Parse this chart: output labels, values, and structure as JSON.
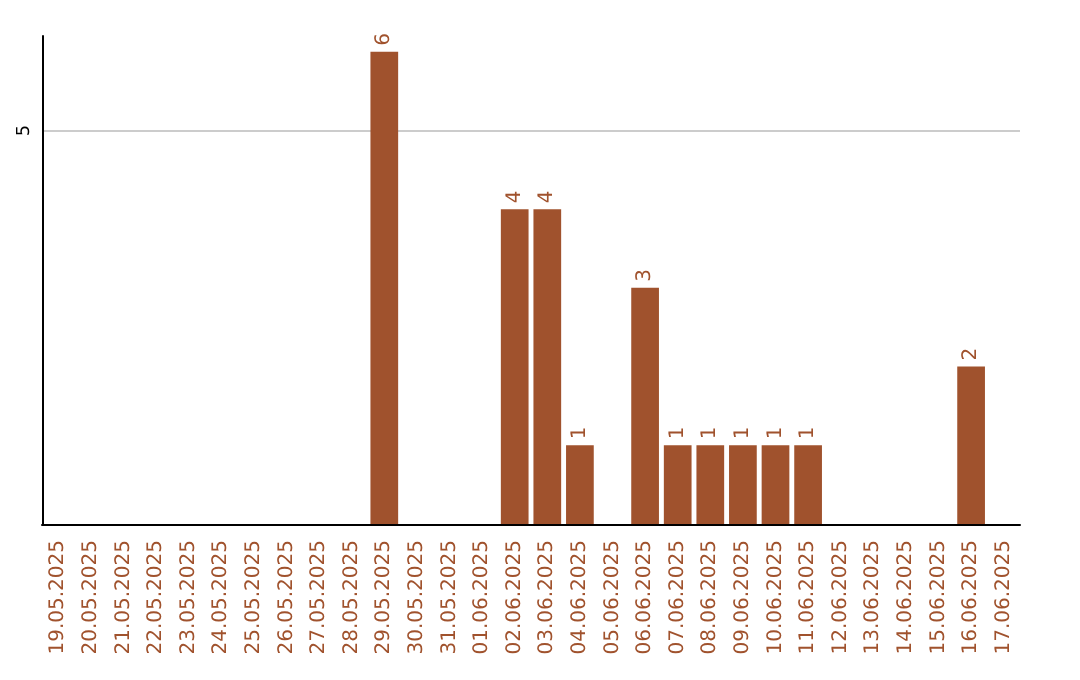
{
  "chart_data": {
    "type": "bar",
    "categories": [
      "19.05.2025",
      "20.05.2025",
      "21.05.2025",
      "22.05.2025",
      "23.05.2025",
      "24.05.2025",
      "25.05.2025",
      "26.05.2025",
      "27.05.2025",
      "28.05.2025",
      "29.05.2025",
      "30.05.2025",
      "31.05.2025",
      "01.06.2025",
      "02.06.2025",
      "03.06.2025",
      "04.06.2025",
      "05.06.2025",
      "06.06.2025",
      "07.06.2025",
      "08.06.2025",
      "09.06.2025",
      "10.06.2025",
      "11.06.2025",
      "12.06.2025",
      "13.06.2025",
      "14.06.2025",
      "15.06.2025",
      "16.06.2025",
      "17.06.2025"
    ],
    "values": [
      0,
      0,
      0,
      0,
      0,
      0,
      0,
      0,
      0,
      0,
      6,
      0,
      0,
      0,
      4,
      4,
      1,
      0,
      3,
      1,
      1,
      1,
      1,
      1,
      0,
      0,
      0,
      0,
      2,
      0
    ],
    "value_labels": [
      null,
      null,
      null,
      null,
      null,
      null,
      null,
      null,
      null,
      null,
      "6",
      null,
      null,
      null,
      "4",
      "4",
      "1",
      null,
      "3",
      "1",
      "1",
      "1",
      "1",
      "1",
      null,
      null,
      null,
      null,
      "2",
      null
    ],
    "color": "#a0522d",
    "ylim": [
      0,
      6.2
    ],
    "yticks": [
      {
        "value": 0,
        "label": null
      },
      5
    ],
    "grid": "y"
  }
}
